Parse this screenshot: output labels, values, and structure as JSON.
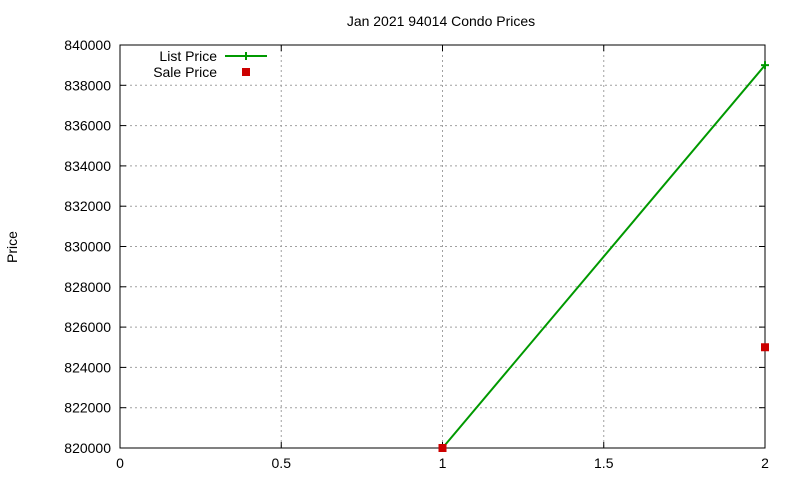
{
  "chart_data": {
    "type": "line",
    "title": "Jan 2021 94014 Condo Prices",
    "xlabel": "",
    "ylabel": "Price",
    "xlim": [
      0,
      2
    ],
    "ylim": [
      820000,
      840000
    ],
    "x_ticks": [
      0,
      0.5,
      1,
      1.5,
      2
    ],
    "x_tick_labels": [
      "0",
      "0.5",
      "1",
      "1.5",
      "2"
    ],
    "y_ticks": [
      820000,
      822000,
      824000,
      826000,
      828000,
      830000,
      832000,
      834000,
      836000,
      838000,
      840000
    ],
    "y_tick_labels": [
      "820000",
      "822000",
      "824000",
      "826000",
      "828000",
      "830000",
      "832000",
      "834000",
      "836000",
      "838000",
      "840000"
    ],
    "grid": true,
    "legend_position": "top-left",
    "series": [
      {
        "name": "List Price",
        "style": "line-plus",
        "color": "#009900",
        "points": [
          [
            1,
            820000
          ],
          [
            2,
            839000
          ]
        ]
      },
      {
        "name": "Sale Price",
        "style": "square",
        "color": "#cc0000",
        "points": [
          [
            1,
            820000
          ],
          [
            2,
            825000
          ]
        ]
      }
    ]
  }
}
